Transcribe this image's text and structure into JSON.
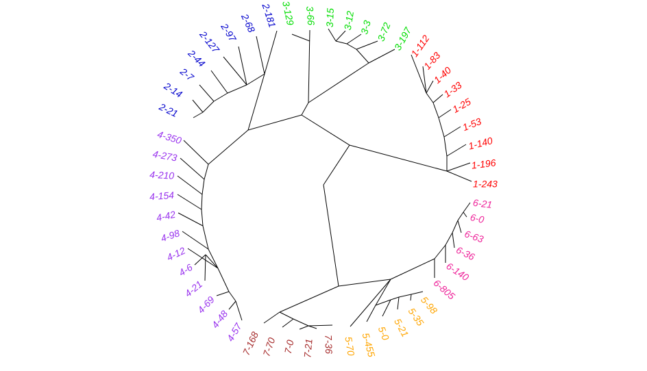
{
  "diagram": {
    "type": "circular-dendrogram",
    "groups": [
      {
        "id": "1",
        "color": "#ff0000",
        "labels": [
          "1-243",
          "1-196",
          "1-140",
          "1-53",
          "1-25",
          "1-33",
          "1-40",
          "1-83",
          "1-112"
        ]
      },
      {
        "id": "3",
        "color": "#00dd00",
        "labels": [
          "3-197",
          "3-72",
          "3-3",
          "3-12",
          "3-15",
          "3-66",
          "3-129"
        ]
      },
      {
        "id": "2",
        "color": "#0000cc",
        "labels": [
          "2-181",
          "2-68",
          "2-97",
          "2-127",
          "2-44",
          "2-7",
          "2-14",
          "2-21"
        ]
      },
      {
        "id": "4",
        "color": "#9933ee",
        "labels": [
          "4-350",
          "4-273",
          "4-210",
          "4-154",
          "4-42",
          "4-98",
          "4-12",
          "4-6",
          "4-21",
          "4-69",
          "4-48",
          "4-57"
        ]
      },
      {
        "id": "7",
        "color": "#a52a2a",
        "labels": [
          "7-168",
          "7-70",
          "7-0",
          "7-21",
          "7-36"
        ]
      },
      {
        "id": "5",
        "color": "#ffa500",
        "labels": [
          "5-70",
          "5-455",
          "5-0",
          "5-21",
          "5-35",
          "5-98"
        ]
      },
      {
        "id": "6",
        "color": "#ee2299",
        "labels": [
          "6-805",
          "6-140",
          "6-36",
          "6-63",
          "6-0",
          "6-21"
        ]
      }
    ]
  }
}
